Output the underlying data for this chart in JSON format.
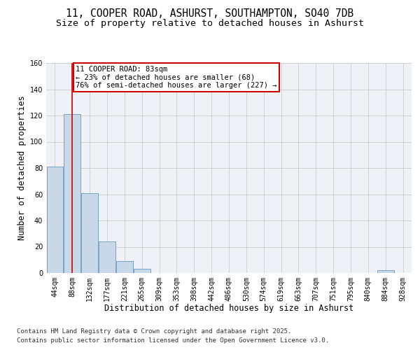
{
  "title1": "11, COOPER ROAD, ASHURST, SOUTHAMPTON, SO40 7DB",
  "title2": "Size of property relative to detached houses in Ashurst",
  "xlabel": "Distribution of detached houses by size in Ashurst",
  "ylabel": "Number of detached properties",
  "bins": [
    "44sqm",
    "88sqm",
    "132sqm",
    "177sqm",
    "221sqm",
    "265sqm",
    "309sqm",
    "353sqm",
    "398sqm",
    "442sqm",
    "486sqm",
    "530sqm",
    "574sqm",
    "619sqm",
    "663sqm",
    "707sqm",
    "751sqm",
    "795sqm",
    "840sqm",
    "884sqm",
    "928sqm"
  ],
  "values": [
    81,
    121,
    61,
    24,
    9,
    3,
    0,
    0,
    0,
    0,
    0,
    0,
    0,
    0,
    0,
    0,
    0,
    0,
    0,
    2,
    0
  ],
  "bar_color": "#c8d8e8",
  "bar_edge_color": "#6699bb",
  "grid_color": "#cccccc",
  "background_color": "#eef2f7",
  "vline_x_idx": 1,
  "vline_color": "#cc0000",
  "annotation_text": "11 COOPER ROAD: 83sqm\n← 23% of detached houses are smaller (68)\n76% of semi-detached houses are larger (227) →",
  "annotation_box_color": "#cc0000",
  "ylim": [
    0,
    160
  ],
  "yticks": [
    0,
    20,
    40,
    60,
    80,
    100,
    120,
    140,
    160
  ],
  "footer1": "Contains HM Land Registry data © Crown copyright and database right 2025.",
  "footer2": "Contains public sector information licensed under the Open Government Licence v3.0.",
  "title_fontsize": 10.5,
  "subtitle_fontsize": 9.5,
  "axis_label_fontsize": 8.5,
  "tick_fontsize": 7,
  "annotation_fontsize": 7.5,
  "footer_fontsize": 6.5
}
